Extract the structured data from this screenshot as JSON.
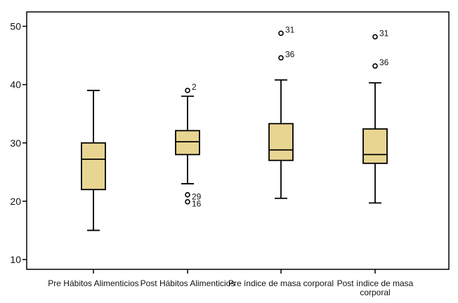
{
  "chart_data": {
    "type": "boxplot",
    "ylim": [
      8,
      53
    ],
    "yticks": [
      10,
      20,
      30,
      40,
      50
    ],
    "box_fill": "#e8d591",
    "line_color": "#000000",
    "grid": false,
    "categories": [
      {
        "label_lines": [
          "Pre Hábitos Alimenticios"
        ],
        "whisker_low": 15,
        "q1": 22,
        "median": 27.2,
        "q3": 30,
        "whisker_high": 39,
        "outliers": []
      },
      {
        "label_lines": [
          "Post Hábitos Alimenticios"
        ],
        "whisker_low": 23,
        "q1": 28,
        "median": 30.2,
        "q3": 32.1,
        "whisker_high": 38,
        "outliers": [
          {
            "value": 39,
            "id": "2"
          },
          {
            "value": 21.1,
            "id": "29"
          },
          {
            "value": 19.9,
            "id": "16"
          }
        ]
      },
      {
        "label_lines": [
          "Pre índice de masa corporal"
        ],
        "whisker_low": 20.5,
        "q1": 27,
        "median": 28.8,
        "q3": 33.3,
        "whisker_high": 40.8,
        "outliers": [
          {
            "value": 48.8,
            "id": "31"
          },
          {
            "value": 44.6,
            "id": "36"
          }
        ]
      },
      {
        "label_lines": [
          "Post índice de masa",
          "corporal"
        ],
        "whisker_low": 19.7,
        "q1": 26.5,
        "median": 28,
        "q3": 32.4,
        "whisker_high": 40.3,
        "outliers": [
          {
            "value": 48.2,
            "id": "31"
          },
          {
            "value": 43.2,
            "id": "36"
          }
        ]
      }
    ]
  }
}
